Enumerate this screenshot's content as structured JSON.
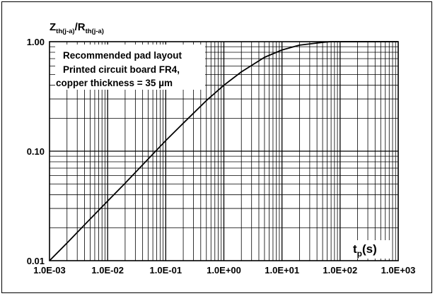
{
  "chart_data": {
    "type": "line",
    "title": "",
    "ylabel": {
      "main": "Z",
      "main_sub": "th(j-a)",
      "sep": "/R",
      "sep_sub": "th(j-a)"
    },
    "xlabel": {
      "main": "t",
      "sub": "p",
      "unit": "(s)"
    },
    "xscale": "log",
    "yscale": "log",
    "xlim": [
      0.001,
      1000
    ],
    "ylim": [
      0.01,
      1.0
    ],
    "x_ticks": [
      "1.0E-03",
      "1.0E-02",
      "1.0E-01",
      "1.0E+00",
      "1.0E+01",
      "1.0E+02",
      "1.0E+03"
    ],
    "y_ticks": [
      "1.00",
      "0.10",
      "0.01"
    ],
    "grid": true,
    "annotations": [
      "Recommended pad layout",
      "Printed circuit board FR4,",
      "copper thickness = 35 µm"
    ],
    "series": [
      {
        "color": "#000000",
        "x": [
          0.001,
          0.002,
          0.005,
          0.01,
          0.02,
          0.05,
          0.1,
          0.2,
          0.5,
          1,
          2,
          5,
          10,
          20,
          50,
          70,
          100,
          200,
          1000
        ],
        "y": [
          0.01,
          0.0145,
          0.024,
          0.035,
          0.051,
          0.085,
          0.125,
          0.18,
          0.29,
          0.4,
          0.53,
          0.72,
          0.84,
          0.93,
          0.985,
          1.0,
          1.0,
          1.0,
          1.0
        ]
      }
    ]
  }
}
